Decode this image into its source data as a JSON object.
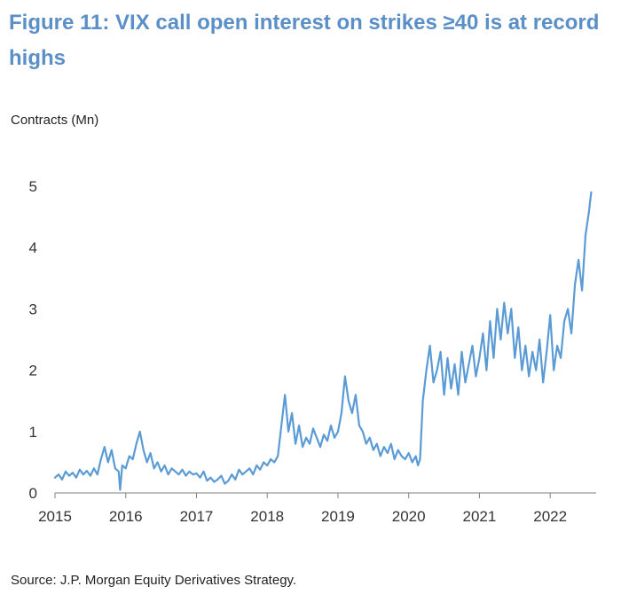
{
  "title": "Figure 11: VIX call open interest on strikes ≥40 is at record highs",
  "source": "Source: J.P. Morgan Equity Derivatives Strategy.",
  "colors": {
    "title": "#5b8fc7",
    "line": "#5b9bd5",
    "axis": "#7f7f7f",
    "text": "#333333"
  },
  "chart_data": {
    "type": "line",
    "title": "Figure 11: VIX call open interest on strikes ≥40 is at record highs",
    "ylabel": "Contracts (Mn)",
    "xlabel": "",
    "xlim": [
      2015,
      2022.65
    ],
    "ylim": [
      0,
      5
    ],
    "x_ticks": [
      2015,
      2016,
      2017,
      2018,
      2019,
      2020,
      2021,
      2022
    ],
    "x_tick_labels": [
      "2015",
      "2016",
      "2017",
      "2018",
      "2019",
      "2020",
      "2021",
      "2022"
    ],
    "y_ticks": [
      0,
      1,
      2,
      3,
      4,
      5
    ],
    "y_tick_labels": [
      "0",
      "1",
      "2",
      "3",
      "4",
      "5"
    ],
    "grid": false,
    "legend": "none",
    "series": [
      {
        "name": "",
        "x": [
          2015.0,
          2015.05,
          2015.1,
          2015.15,
          2015.2,
          2015.25,
          2015.3,
          2015.35,
          2015.4,
          2015.45,
          2015.5,
          2015.55,
          2015.6,
          2015.65,
          2015.7,
          2015.75,
          2015.8,
          2015.85,
          2015.9,
          2015.92,
          2015.95,
          2016.0,
          2016.05,
          2016.1,
          2016.15,
          2016.2,
          2016.25,
          2016.3,
          2016.35,
          2016.4,
          2016.45,
          2016.5,
          2016.55,
          2016.6,
          2016.65,
          2016.7,
          2016.75,
          2016.8,
          2016.85,
          2016.9,
          2016.95,
          2017.0,
          2017.05,
          2017.1,
          2017.15,
          2017.2,
          2017.25,
          2017.3,
          2017.35,
          2017.4,
          2017.45,
          2017.5,
          2017.55,
          2017.6,
          2017.65,
          2017.7,
          2017.75,
          2017.8,
          2017.85,
          2017.9,
          2017.95,
          2018.0,
          2018.05,
          2018.1,
          2018.15,
          2018.2,
          2018.25,
          2018.3,
          2018.35,
          2018.4,
          2018.45,
          2018.5,
          2018.55,
          2018.6,
          2018.65,
          2018.7,
          2018.75,
          2018.8,
          2018.85,
          2018.9,
          2018.95,
          2019.0,
          2019.05,
          2019.1,
          2019.15,
          2019.2,
          2019.25,
          2019.3,
          2019.35,
          2019.4,
          2019.45,
          2019.5,
          2019.55,
          2019.6,
          2019.65,
          2019.7,
          2019.75,
          2019.8,
          2019.85,
          2019.9,
          2019.95,
          2020.0,
          2020.05,
          2020.1,
          2020.13,
          2020.16,
          2020.2,
          2020.25,
          2020.3,
          2020.35,
          2020.4,
          2020.45,
          2020.5,
          2020.55,
          2020.6,
          2020.65,
          2020.7,
          2020.75,
          2020.8,
          2020.85,
          2020.9,
          2020.95,
          2021.0,
          2021.05,
          2021.1,
          2021.15,
          2021.2,
          2021.25,
          2021.3,
          2021.35,
          2021.4,
          2021.45,
          2021.5,
          2021.55,
          2021.6,
          2021.65,
          2021.7,
          2021.75,
          2021.8,
          2021.85,
          2021.9,
          2021.95,
          2022.0,
          2022.05,
          2022.1,
          2022.15,
          2022.2,
          2022.25,
          2022.3,
          2022.35,
          2022.4,
          2022.45,
          2022.5,
          2022.55,
          2022.58
        ],
        "y": [
          0.25,
          0.3,
          0.22,
          0.35,
          0.28,
          0.33,
          0.25,
          0.38,
          0.3,
          0.36,
          0.28,
          0.4,
          0.3,
          0.55,
          0.75,
          0.5,
          0.7,
          0.4,
          0.35,
          0.05,
          0.45,
          0.4,
          0.6,
          0.55,
          0.8,
          1.0,
          0.7,
          0.5,
          0.65,
          0.4,
          0.5,
          0.35,
          0.45,
          0.3,
          0.4,
          0.35,
          0.3,
          0.38,
          0.28,
          0.35,
          0.3,
          0.32,
          0.25,
          0.35,
          0.2,
          0.25,
          0.18,
          0.22,
          0.28,
          0.15,
          0.2,
          0.3,
          0.22,
          0.38,
          0.3,
          0.35,
          0.4,
          0.3,
          0.45,
          0.38,
          0.5,
          0.45,
          0.55,
          0.5,
          0.6,
          1.1,
          1.6,
          1.0,
          1.3,
          0.8,
          1.1,
          0.75,
          0.9,
          0.8,
          1.05,
          0.9,
          0.75,
          0.95,
          0.85,
          1.1,
          0.9,
          1.0,
          1.3,
          1.9,
          1.5,
          1.3,
          1.6,
          1.1,
          1.0,
          0.8,
          0.9,
          0.7,
          0.8,
          0.6,
          0.75,
          0.65,
          0.8,
          0.55,
          0.7,
          0.6,
          0.55,
          0.65,
          0.5,
          0.6,
          0.45,
          0.55,
          1.5,
          2.0,
          2.4,
          1.8,
          2.0,
          2.3,
          1.6,
          2.2,
          1.7,
          2.1,
          1.6,
          2.3,
          1.8,
          2.1,
          2.4,
          1.9,
          2.2,
          2.6,
          2.0,
          2.8,
          2.2,
          3.0,
          2.5,
          3.1,
          2.6,
          3.0,
          2.2,
          2.7,
          2.0,
          2.4,
          1.9,
          2.3,
          2.0,
          2.5,
          1.8,
          2.3,
          2.9,
          2.0,
          2.4,
          2.2,
          2.8,
          3.0,
          2.6,
          3.4,
          3.8,
          3.3,
          4.2,
          4.6,
          4.9
        ]
      }
    ]
  }
}
